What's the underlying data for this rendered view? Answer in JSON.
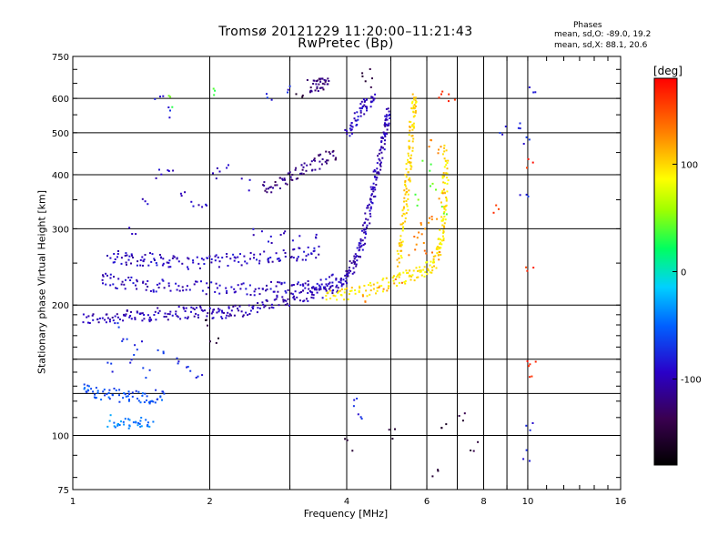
{
  "title": "Tromsø 20121229 11:20:00–11:21:43",
  "subtitle": "RwPretec (Bp)",
  "stats": {
    "title": "Phases",
    "o_mode": "mean, sd,O: -89.0, 19.2",
    "x_mode": "mean, sd,X: 88.1, 20.6"
  },
  "colorbar": {
    "unit": "[deg]",
    "tick_labels": [
      "100",
      "0",
      "-100"
    ],
    "tick_values": [
      100,
      0,
      -100
    ],
    "range": [
      -180,
      180
    ],
    "colormap": "rainbow (black-purple-blue-cyan-green-yellow-red)"
  },
  "chart_data": {
    "type": "scatter",
    "xlabel": "Frequency [MHz]",
    "ylabel": "Stationary phase Virtual Height [km]",
    "xscale": "log",
    "yscale": "log",
    "xlim": [
      1,
      16
    ],
    "ylim": [
      75,
      750
    ],
    "xticks": [
      1,
      2,
      4,
      6,
      8,
      10,
      16
    ],
    "xtick_labels": [
      "1",
      "2",
      "4",
      "6",
      "8",
      "10",
      "16"
    ],
    "x_minor_gridlines": [
      3,
      5,
      7,
      9
    ],
    "yticks": [
      75,
      100,
      200,
      300,
      400,
      500,
      600,
      750
    ],
    "ytick_labels": [
      "75",
      "100",
      "200",
      "300",
      "400",
      "500",
      "600",
      "750"
    ],
    "y_minor_gridlines": [
      125,
      150
    ],
    "grid": true,
    "color_encoding": "phase [deg]",
    "traces": [
      {
        "name": "",
        "phase": -100,
        "points": [
          [
            1.05,
            185
          ],
          [
            1.2,
            188
          ],
          [
            1.35,
            188
          ],
          [
            1.5,
            190
          ],
          [
            1.7,
            192
          ],
          [
            1.9,
            193
          ],
          [
            2.1,
            192
          ],
          [
            2.3,
            194
          ],
          [
            2.6,
            198
          ],
          [
            2.9,
            205
          ],
          [
            3.2,
            210
          ],
          [
            3.5,
            215
          ],
          [
            3.8,
            222
          ],
          [
            4.0,
            232
          ],
          [
            4.15,
            250
          ],
          [
            4.3,
            270
          ],
          [
            4.4,
            300
          ],
          [
            4.5,
            340
          ],
          [
            4.6,
            380
          ],
          [
            4.7,
            420
          ],
          [
            4.8,
            470
          ],
          [
            4.9,
            520
          ],
          [
            4.95,
            570
          ]
        ]
      },
      {
        "name": "",
        "phase": -95,
        "points": [
          [
            1.2,
            260
          ],
          [
            1.35,
            255
          ],
          [
            1.5,
            255
          ],
          [
            1.7,
            250
          ],
          [
            2.0,
            252
          ],
          [
            2.3,
            255
          ],
          [
            2.7,
            258
          ],
          [
            3.1,
            262
          ],
          [
            3.5,
            265
          ]
        ]
      },
      {
        "name": "",
        "phase": -95,
        "points": [
          [
            1.15,
            230
          ],
          [
            1.3,
            225
          ],
          [
            1.5,
            222
          ],
          [
            1.8,
            220
          ],
          [
            2.2,
            218
          ],
          [
            2.6,
            218
          ],
          [
            3.0,
            220
          ],
          [
            3.4,
            222
          ],
          [
            3.8,
            228
          ]
        ]
      },
      {
        "name": "",
        "phase": -120,
        "points": [
          [
            2.6,
            370
          ],
          [
            2.9,
            385
          ],
          [
            3.2,
            410
          ],
          [
            3.5,
            430
          ],
          [
            3.8,
            450
          ]
        ]
      },
      {
        "name": "",
        "phase": -125,
        "points": [
          [
            3.3,
            640
          ],
          [
            3.5,
            645
          ],
          [
            3.65,
            645
          ]
        ]
      },
      {
        "name": "",
        "phase": -95,
        "points": [
          [
            4.0,
            500
          ],
          [
            4.2,
            540
          ],
          [
            4.4,
            580
          ],
          [
            4.6,
            600
          ]
        ]
      },
      {
        "name": "",
        "phase": 95,
        "points": [
          [
            3.6,
            208
          ],
          [
            4.0,
            212
          ],
          [
            4.5,
            218
          ],
          [
            5.0,
            225
          ],
          [
            5.4,
            232
          ],
          [
            5.8,
            238
          ],
          [
            6.2,
            248
          ],
          [
            6.4,
            270
          ],
          [
            6.5,
            300
          ],
          [
            6.55,
            340
          ],
          [
            6.6,
            400
          ],
          [
            6.6,
            460
          ]
        ]
      },
      {
        "name": "",
        "phase": 100,
        "points": [
          [
            5.2,
            250
          ],
          [
            5.3,
            290
          ],
          [
            5.4,
            340
          ],
          [
            5.45,
            390
          ],
          [
            5.5,
            440
          ],
          [
            5.55,
            500
          ],
          [
            5.6,
            560
          ],
          [
            5.65,
            610
          ]
        ]
      },
      {
        "name": "",
        "phase": -60,
        "points": [
          [
            1.05,
            128
          ],
          [
            1.15,
            125
          ],
          [
            1.3,
            123
          ],
          [
            1.45,
            122
          ],
          [
            1.6,
            125
          ]
        ]
      },
      {
        "name": "",
        "phase": -40,
        "points": [
          [
            1.2,
            108
          ],
          [
            1.35,
            106
          ],
          [
            1.5,
            108
          ]
        ]
      }
    ],
    "scatter_noise": [
      {
        "phase": -95,
        "points": [
          [
            1.35,
            300
          ],
          [
            1.45,
            340
          ],
          [
            1.55,
            400
          ],
          [
            1.65,
            420
          ],
          [
            1.75,
            370
          ],
          [
            1.85,
            350
          ],
          [
            1.95,
            330
          ],
          [
            2.05,
            400
          ],
          [
            2.15,
            420
          ],
          [
            2.4,
            380
          ],
          [
            2.55,
            300
          ],
          [
            2.7,
            280
          ],
          [
            2.9,
            300
          ],
          [
            3.1,
            280
          ],
          [
            3.4,
            285
          ]
        ]
      },
      {
        "phase": -75,
        "points": [
          [
            1.25,
            180
          ],
          [
            1.3,
            165
          ],
          [
            1.4,
            160
          ],
          [
            1.55,
            155
          ],
          [
            1.7,
            150
          ],
          [
            1.8,
            145
          ],
          [
            1.9,
            140
          ],
          [
            1.35,
            150
          ],
          [
            1.45,
            140
          ],
          [
            1.2,
            145
          ]
        ]
      },
      {
        "phase": -80,
        "points": [
          [
            1.55,
            590
          ],
          [
            1.6,
            560
          ],
          [
            2.7,
            615
          ],
          [
            3.0,
            640
          ],
          [
            10.2,
            640
          ],
          [
            10.0,
            480
          ],
          [
            9.7,
            520
          ],
          [
            8.8,
            510
          ],
          [
            9.8,
            360
          ],
          [
            10.1,
            105
          ],
          [
            10.0,
            90
          ],
          [
            4.25,
            110
          ],
          [
            4.2,
            120
          ]
        ]
      },
      {
        "phase": -150,
        "points": [
          [
            4.4,
            680
          ],
          [
            4.5,
            650
          ],
          [
            3.15,
            600
          ],
          [
            2.0,
            180
          ],
          [
            2.05,
            165
          ],
          [
            4.05,
            95
          ],
          [
            6.3,
            82
          ],
          [
            7.6,
            95
          ],
          [
            5.0,
            100
          ],
          [
            6.5,
            105
          ],
          [
            7.2,
            110
          ]
        ]
      },
      {
        "phase": 130,
        "points": [
          [
            6.2,
            480
          ],
          [
            6.4,
            450
          ],
          [
            6.5,
            360
          ],
          [
            6.3,
            320
          ],
          [
            6.0,
            310
          ],
          [
            5.85,
            300
          ],
          [
            5.7,
            290
          ],
          [
            5.6,
            270
          ],
          [
            6.0,
            270
          ],
          [
            6.3,
            260
          ],
          [
            5.2,
            230
          ],
          [
            4.8,
            215
          ],
          [
            4.4,
            210
          ]
        ]
      },
      {
        "phase": 165,
        "points": [
          [
            6.8,
            600
          ],
          [
            6.4,
            620
          ],
          [
            8.5,
            330
          ],
          [
            10.1,
            240
          ],
          [
            10.15,
            420
          ],
          [
            10.2,
            150
          ],
          [
            10.15,
            140
          ]
        ]
      },
      {
        "phase": 40,
        "points": [
          [
            1.65,
            590
          ],
          [
            2.05,
            620
          ],
          [
            6.0,
            420
          ],
          [
            6.2,
            380
          ],
          [
            6.5,
            330
          ],
          [
            5.7,
            350
          ]
        ]
      }
    ]
  }
}
